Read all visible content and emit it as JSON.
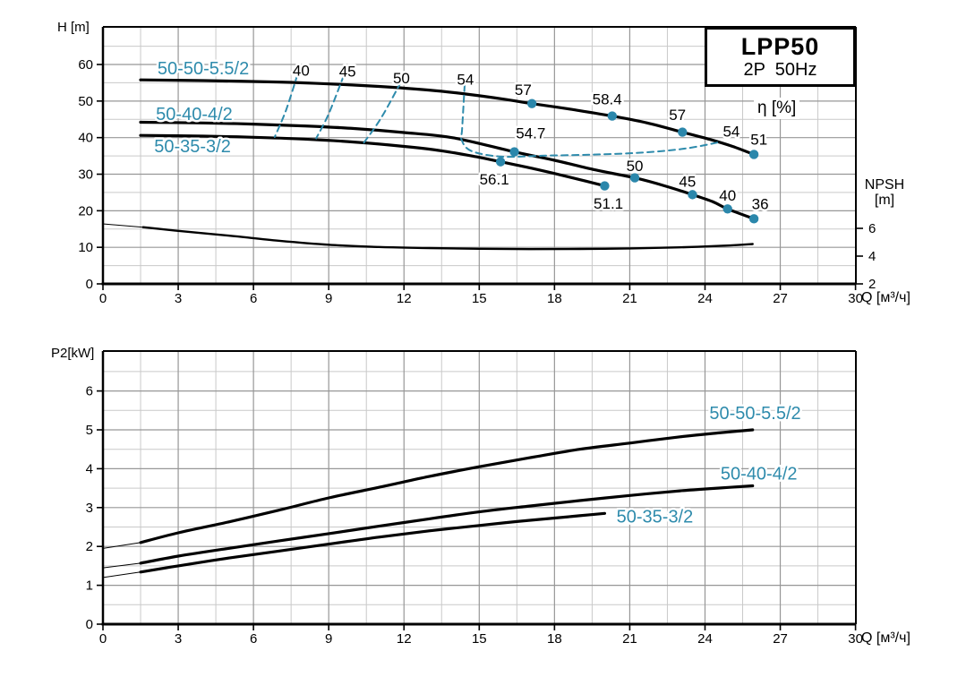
{
  "labels": {
    "h_axis": "H [m]",
    "p2_axis": "P2[kW]",
    "q_axis": "Q [м³/ч]",
    "eta": "η [%]",
    "npsh": "NPSH",
    "npsh_unit": "[m]"
  },
  "title_box": {
    "line1": "LPP50",
    "line2": "2P  50Hz"
  },
  "colors": {
    "teal": "#2e8bac",
    "dot": "#2b87ab",
    "grid_major": "#979797",
    "grid_minor": "#c9c9c9",
    "curve": "#000000"
  },
  "chart_data": [
    {
      "type": "line",
      "name": "head-capacity-chart",
      "xlabel": "Q [м³/ч]",
      "ylabel": "H [m]",
      "xlim": [
        0,
        30
      ],
      "ylim": [
        0,
        70
      ],
      "x_ticks": [
        0,
        3,
        6,
        9,
        12,
        15,
        18,
        21,
        24,
        27,
        30
      ],
      "y_ticks": [
        0,
        10,
        20,
        30,
        40,
        50,
        60
      ],
      "right_axis": {
        "title": "NPSH",
        "unit": "[m]",
        "ticks": [
          6,
          4,
          2
        ]
      },
      "series": [
        {
          "label": "50-50-5.5/2",
          "label_pos": [
            4.0,
            58.8
          ],
          "points": [
            [
              1.5,
              55.8
            ],
            [
              4,
              55.6
            ],
            [
              7,
              55.2
            ],
            [
              9,
              54.7
            ],
            [
              11,
              54.0
            ],
            [
              13,
              53.0
            ],
            [
              14.5,
              51.9
            ],
            [
              16,
              50.5
            ],
            [
              17.1,
              49.3
            ],
            [
              18.7,
              47.7
            ],
            [
              20.3,
              45.9
            ],
            [
              21.7,
              44.0
            ],
            [
              23.1,
              41.5
            ],
            [
              24.2,
              39.5
            ],
            [
              25.1,
              37.6
            ],
            [
              25.95,
              35.4
            ]
          ],
          "eta_points": [
            {
              "q": 17.1,
              "h": 49.3,
              "t": "57",
              "lq": 16.75,
              "lh": 53.2
            },
            {
              "q": 20.3,
              "h": 45.9,
              "t": "58.4",
              "lq": 20.1,
              "lh": 50.6
            },
            {
              "q": 23.1,
              "h": 41.5,
              "t": "57",
              "lq": 22.9,
              "lh": 46.3
            },
            {
              "q": 25.95,
              "h": 35.4,
              "t": "51",
              "lq": 26.15,
              "lh": 39.6
            }
          ]
        },
        {
          "label": "50-40-4/2",
          "label_pos": [
            3.64,
            46.3
          ],
          "points": [
            [
              1.5,
              44.2
            ],
            [
              4,
              44.0
            ],
            [
              6,
              43.7
            ],
            [
              8,
              43.2
            ],
            [
              10,
              42.5
            ],
            [
              12,
              41.4
            ],
            [
              14,
              39.9
            ],
            [
              16.4,
              36.1
            ],
            [
              18,
              33.8
            ],
            [
              19.6,
              31.2
            ],
            [
              21.2,
              29.0
            ],
            [
              22.4,
              26.8
            ],
            [
              23.5,
              24.4
            ],
            [
              24.3,
              22.5
            ],
            [
              24.9,
              20.5
            ],
            [
              25.95,
              17.8
            ]
          ],
          "eta_points": [
            {
              "q": 16.4,
              "h": 36.1,
              "t": "54.7",
              "lq": 17.05,
              "lh": 41.3
            },
            {
              "q": 21.2,
              "h": 29.0,
              "t": "50",
              "lq": 21.2,
              "lh": 32.3
            },
            {
              "q": 23.5,
              "h": 24.4,
              "t": "45",
              "lq": 23.3,
              "lh": 28.0
            },
            {
              "q": 24.9,
              "h": 20.5,
              "t": "40",
              "lq": 24.9,
              "lh": 24.3
            },
            {
              "q": 25.95,
              "h": 17.8,
              "t": "36",
              "lq": 26.2,
              "lh": 21.9
            }
          ]
        },
        {
          "label": "50-35-3/2",
          "label_pos": [
            3.57,
            37.5
          ],
          "points": [
            [
              1.5,
              40.6
            ],
            [
              4,
              40.4
            ],
            [
              6,
              40.1
            ],
            [
              8,
              39.6
            ],
            [
              10,
              38.8
            ],
            [
              12,
              37.6
            ],
            [
              13.5,
              36.4
            ],
            [
              15,
              34.6
            ],
            [
              15.85,
              33.4
            ],
            [
              17.3,
              31.3
            ],
            [
              18.6,
              29.2
            ],
            [
              20.0,
              26.8
            ]
          ],
          "eta_points": [
            {
              "q": 15.85,
              "h": 33.4,
              "t": "56.1",
              "lq": 15.6,
              "lh": 28.7
            },
            {
              "q": 20.0,
              "h": 26.8,
              "t": "51.1",
              "lq": 20.15,
              "lh": 22.0
            }
          ]
        }
      ],
      "npsh_curve": {
        "lead": [
          [
            0,
            16.4
          ],
          [
            1.6,
            15.5
          ]
        ],
        "points": [
          [
            1.6,
            15.5
          ],
          [
            3,
            14.5
          ],
          [
            5,
            13.2
          ],
          [
            7,
            11.8
          ],
          [
            9,
            10.7
          ],
          [
            11,
            10.1
          ],
          [
            13,
            9.8
          ],
          [
            15,
            9.6
          ],
          [
            17,
            9.5
          ],
          [
            19,
            9.55
          ],
          [
            21,
            9.7
          ],
          [
            23,
            10.0
          ],
          [
            25,
            10.5
          ],
          [
            25.9,
            10.9
          ]
        ]
      },
      "eta_contours": [
        {
          "value": 40,
          "labels": [
            {
              "t": "40",
              "q": 7.9,
              "h": 58.4
            }
          ],
          "pts": [
            [
              7.75,
              57.2
            ],
            [
              7.3,
              47.5
            ],
            [
              6.85,
              40.2
            ]
          ]
        },
        {
          "value": 45,
          "labels": [
            {
              "t": "45",
              "q": 9.75,
              "h": 58.2
            }
          ],
          "pts": [
            [
              9.6,
              57.0
            ],
            [
              9.0,
              46.5
            ],
            [
              8.5,
              39.8
            ]
          ]
        },
        {
          "value": 50,
          "labels": [
            {
              "t": "50",
              "q": 11.9,
              "h": 56.3
            }
          ],
          "pts": [
            [
              11.87,
              55.1
            ],
            [
              11.1,
              45.5
            ],
            [
              10.4,
              38.6
            ]
          ]
        },
        {
          "value": 54,
          "labels": [
            {
              "t": "54",
              "q": 14.45,
              "h": 56.0
            },
            {
              "t": "54",
              "q": 25.05,
              "h": 41.8
            }
          ],
          "pts": [
            [
              14.42,
              54.4
            ],
            [
              14.32,
              42.5
            ],
            [
              14.3,
              39.3
            ],
            [
              14.7,
              36.3
            ],
            [
              15.9,
              34.8
            ],
            [
              17.5,
              35.05
            ],
            [
              19.5,
              35.35
            ],
            [
              21.5,
              35.9
            ],
            [
              23.2,
              37.0
            ],
            [
              24.6,
              38.8
            ]
          ]
        }
      ]
    },
    {
      "type": "line",
      "name": "power-chart",
      "xlabel": "Q [м³/ч]",
      "ylabel": "P2[kW]",
      "xlim": [
        0,
        30
      ],
      "ylim": [
        0,
        7
      ],
      "x_ticks": [
        0,
        3,
        6,
        9,
        12,
        15,
        18,
        21,
        24,
        27,
        30
      ],
      "y_ticks": [
        0,
        1,
        2,
        3,
        4,
        5,
        6
      ],
      "series": [
        {
          "label": "50-50-5.5/2",
          "label_pos": [
            26.0,
            5.42
          ],
          "lead": [
            [
              0,
              1.95
            ],
            [
              1.5,
              2.1
            ]
          ],
          "points": [
            [
              1.5,
              2.1
            ],
            [
              3,
              2.35
            ],
            [
              5,
              2.63
            ],
            [
              7,
              2.93
            ],
            [
              9,
              3.25
            ],
            [
              11,
              3.52
            ],
            [
              13,
              3.8
            ],
            [
              15,
              4.05
            ],
            [
              17,
              4.28
            ],
            [
              19,
              4.5
            ],
            [
              21,
              4.66
            ],
            [
              23,
              4.82
            ],
            [
              24.5,
              4.92
            ],
            [
              25.9,
              5.0
            ]
          ]
        },
        {
          "label": "50-40-4/2",
          "label_pos": [
            26.15,
            3.86
          ],
          "lead": [
            [
              0,
              1.45
            ],
            [
              1.5,
              1.57
            ]
          ],
          "points": [
            [
              1.5,
              1.57
            ],
            [
              3,
              1.75
            ],
            [
              5,
              1.95
            ],
            [
              7,
              2.14
            ],
            [
              9,
              2.33
            ],
            [
              11,
              2.52
            ],
            [
              13,
              2.71
            ],
            [
              15,
              2.89
            ],
            [
              17,
              3.04
            ],
            [
              19,
              3.18
            ],
            [
              21,
              3.31
            ],
            [
              23,
              3.43
            ],
            [
              24.5,
              3.5
            ],
            [
              25.9,
              3.56
            ]
          ]
        },
        {
          "label": "50-35-3/2",
          "label_pos": [
            22.0,
            2.75
          ],
          "lead": [
            [
              0,
              1.2
            ],
            [
              1.5,
              1.34
            ]
          ],
          "points": [
            [
              1.5,
              1.34
            ],
            [
              3,
              1.5
            ],
            [
              5,
              1.7
            ],
            [
              7,
              1.88
            ],
            [
              9,
              2.06
            ],
            [
              11,
              2.24
            ],
            [
              13,
              2.4
            ],
            [
              15,
              2.54
            ],
            [
              16.5,
              2.64
            ],
            [
              18,
              2.73
            ],
            [
              19,
              2.79
            ],
            [
              20,
              2.85
            ]
          ]
        }
      ]
    }
  ]
}
